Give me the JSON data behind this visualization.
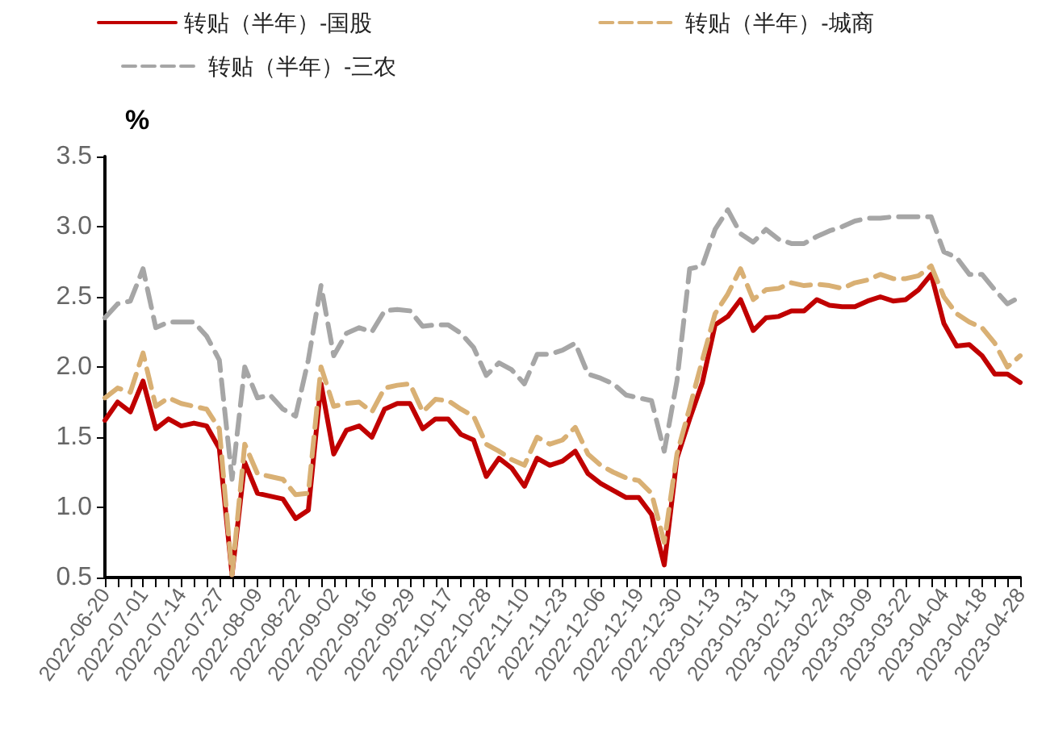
{
  "chart_data": {
    "type": "line",
    "ylabel": "%",
    "legend": "top",
    "grid": false,
    "marker": "none",
    "categories": [
      "2022-06-20",
      null,
      null,
      "2022-07-01",
      null,
      null,
      "2022-07-14",
      null,
      null,
      "2022-07-27",
      null,
      null,
      "2022-08-09",
      null,
      null,
      "2022-08-22",
      null,
      null,
      "2022-09-02",
      null,
      null,
      "2022-09-16",
      null,
      null,
      "2022-09-29",
      null,
      null,
      "2022-10-17",
      null,
      null,
      "2022-10-28",
      null,
      null,
      "2022-11-10",
      null,
      null,
      "2022-11-23",
      null,
      null,
      "2022-12-06",
      null,
      null,
      "2022-12-19",
      null,
      null,
      "2022-12-30",
      null,
      null,
      "2023-01-13",
      null,
      null,
      "2023-01-31",
      null,
      null,
      "2023-02-13",
      null,
      null,
      "2023-02-24",
      null,
      null,
      "2023-03-09",
      null,
      null,
      "2023-03-22",
      null,
      null,
      "2023-04-04",
      null,
      null,
      "2023-04-18",
      null,
      null,
      "2023-04-28"
    ],
    "ylim": [
      0.5,
      3.5
    ],
    "yticks": [
      0.5,
      {
        "value": 1,
        "label": "1.0"
      },
      1.5,
      {
        "value": 2,
        "label": "2.0"
      },
      2.5,
      {
        "value": 3,
        "label": "3.0"
      },
      3.5
    ],
    "series": [
      {
        "name": "转贴（半年）-国股",
        "color": "#c00000",
        "line_style": "solid",
        "values": [
          1.62,
          1.75,
          1.68,
          1.9,
          1.56,
          1.63,
          1.58,
          1.6,
          1.58,
          1.42,
          0.52,
          1.32,
          1.1,
          1.08,
          1.06,
          0.92,
          0.98,
          1.88,
          1.38,
          1.55,
          1.58,
          1.5,
          1.7,
          1.74,
          1.74,
          1.56,
          1.63,
          1.63,
          1.52,
          1.48,
          1.22,
          1.35,
          1.28,
          1.15,
          1.35,
          1.3,
          1.33,
          1.4,
          1.24,
          1.17,
          1.12,
          1.07,
          1.07,
          0.95,
          0.59,
          1.35,
          1.63,
          1.89,
          2.3,
          2.36,
          2.48,
          2.26,
          2.35,
          2.36,
          2.4,
          2.4,
          2.48,
          2.44,
          2.43,
          2.43,
          2.47,
          2.5,
          2.47,
          2.48,
          2.55,
          2.66,
          2.31,
          2.15,
          2.16,
          2.08,
          1.95,
          1.95,
          1.89
        ]
      },
      {
        "name": "转贴（半年）-城商",
        "color": "#d9b074",
        "line_style": "dashed",
        "values": [
          1.78,
          1.85,
          1.82,
          2.1,
          1.72,
          1.78,
          1.74,
          1.72,
          1.7,
          1.56,
          0.52,
          1.45,
          1.24,
          1.22,
          1.2,
          1.09,
          1.1,
          2.0,
          1.72,
          1.74,
          1.75,
          1.68,
          1.85,
          1.87,
          1.88,
          1.68,
          1.77,
          1.76,
          1.7,
          1.65,
          1.45,
          1.4,
          1.34,
          1.3,
          1.5,
          1.45,
          1.48,
          1.57,
          1.38,
          1.3,
          1.25,
          1.21,
          1.19,
          1.1,
          0.75,
          1.38,
          1.71,
          2.05,
          2.38,
          2.52,
          2.7,
          2.48,
          2.55,
          2.56,
          2.6,
          2.58,
          2.59,
          2.58,
          2.56,
          2.6,
          2.62,
          2.66,
          2.63,
          2.63,
          2.65,
          2.72,
          2.5,
          2.38,
          2.32,
          2.28,
          2.17,
          2.0,
          2.08
        ]
      },
      {
        "name": "转贴（半年）-三农",
        "color": "#a6a6a6",
        "line_style": "dashed",
        "values": [
          2.35,
          2.45,
          2.47,
          2.7,
          2.28,
          2.32,
          2.32,
          2.32,
          2.22,
          2.05,
          1.2,
          2.0,
          1.78,
          1.8,
          1.7,
          1.65,
          2.05,
          2.58,
          2.08,
          2.24,
          2.28,
          2.25,
          2.4,
          2.41,
          2.4,
          2.29,
          2.3,
          2.3,
          2.24,
          2.14,
          1.94,
          2.03,
          1.98,
          1.88,
          2.09,
          2.09,
          2.12,
          2.17,
          1.95,
          1.92,
          1.88,
          1.8,
          1.78,
          1.76,
          1.4,
          1.9,
          2.7,
          2.72,
          2.98,
          3.12,
          2.95,
          2.89,
          2.98,
          2.91,
          2.88,
          2.88,
          2.93,
          2.97,
          3.0,
          3.04,
          3.06,
          3.06,
          3.07,
          3.07,
          3.07,
          3.07,
          2.82,
          2.78,
          2.66,
          2.66,
          2.55,
          2.45,
          2.5
        ]
      }
    ]
  }
}
